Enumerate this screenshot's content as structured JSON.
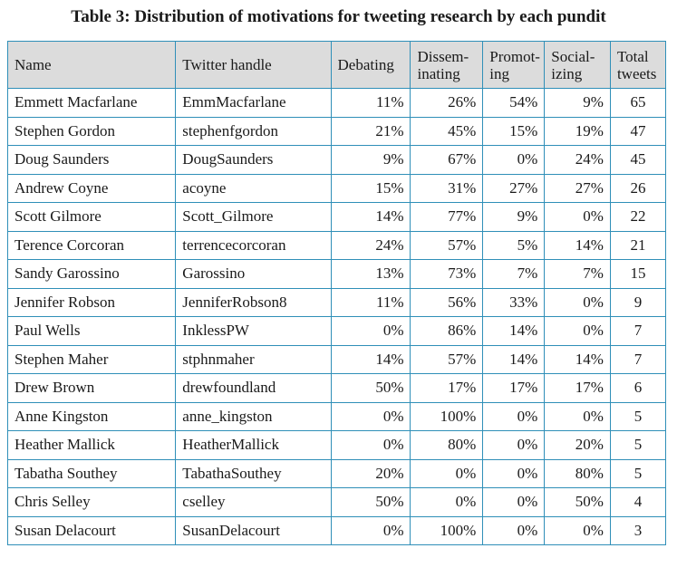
{
  "title": "Table 3: Distribution of motivations for tweeting research by each pundit",
  "headers": {
    "name": "Name",
    "handle": "Twitter handle",
    "debating": "Debating",
    "disseminating_1": "Dissem-",
    "disseminating_2": "inating",
    "promoting_1": "Promot-",
    "promoting_2": "ing",
    "socializing_1": "Social-",
    "socializing_2": "izing",
    "total_1": "Total",
    "total_2": "tweets"
  },
  "rows": [
    {
      "name": "Emmett Macfarlane",
      "handle": "EmmMacfarlane",
      "debating": "11%",
      "disseminating": "26%",
      "promoting": "54%",
      "socializing": "9%",
      "total": "65"
    },
    {
      "name": "Stephen Gordon",
      "handle": "stephenfgordon",
      "debating": "21%",
      "disseminating": "45%",
      "promoting": "15%",
      "socializing": "19%",
      "total": "47"
    },
    {
      "name": "Doug Saunders",
      "handle": "DougSaunders",
      "debating": "9%",
      "disseminating": "67%",
      "promoting": "0%",
      "socializing": "24%",
      "total": "45"
    },
    {
      "name": "Andrew Coyne",
      "handle": "acoyne",
      "debating": "15%",
      "disseminating": "31%",
      "promoting": "27%",
      "socializing": "27%",
      "total": "26"
    },
    {
      "name": "Scott Gilmore",
      "handle": "Scott_Gilmore",
      "debating": "14%",
      "disseminating": "77%",
      "promoting": "9%",
      "socializing": "0%",
      "total": "22"
    },
    {
      "name": "Terence Corcoran",
      "handle": "terrencecorcoran",
      "debating": "24%",
      "disseminating": "57%",
      "promoting": "5%",
      "socializing": "14%",
      "total": "21"
    },
    {
      "name": "Sandy Garossino",
      "handle": "Garossino",
      "debating": "13%",
      "disseminating": "73%",
      "promoting": "7%",
      "socializing": "7%",
      "total": "15"
    },
    {
      "name": "Jennifer Robson",
      "handle": "JenniferRobson8",
      "debating": "11%",
      "disseminating": "56%",
      "promoting": "33%",
      "socializing": "0%",
      "total": "9"
    },
    {
      "name": "Paul Wells",
      "handle": "InklessPW",
      "debating": "0%",
      "disseminating": "86%",
      "promoting": "14%",
      "socializing": "0%",
      "total": "7"
    },
    {
      "name": "Stephen Maher",
      "handle": "stphnmaher",
      "debating": "14%",
      "disseminating": "57%",
      "promoting": "14%",
      "socializing": "14%",
      "total": "7"
    },
    {
      "name": "Drew Brown",
      "handle": "drewfoundland",
      "debating": "50%",
      "disseminating": "17%",
      "promoting": "17%",
      "socializing": "17%",
      "total": "6"
    },
    {
      "name": "Anne Kingston",
      "handle": "anne_kingston",
      "debating": "0%",
      "disseminating": "100%",
      "promoting": "0%",
      "socializing": "0%",
      "total": "5"
    },
    {
      "name": "Heather Mallick",
      "handle": "HeatherMallick",
      "debating": "0%",
      "disseminating": "80%",
      "promoting": "0%",
      "socializing": "20%",
      "total": "5"
    },
    {
      "name": "Tabatha Southey",
      "handle": "TabathaSouthey",
      "debating": "20%",
      "disseminating": "0%",
      "promoting": "0%",
      "socializing": "80%",
      "total": "5"
    },
    {
      "name": "Chris Selley",
      "handle": "cselley",
      "debating": "50%",
      "disseminating": "0%",
      "promoting": "0%",
      "socializing": "50%",
      "total": "4"
    },
    {
      "name": "Susan Delacourt",
      "handle": "SusanDelacourt",
      "debating": "0%",
      "disseminating": "100%",
      "promoting": "0%",
      "socializing": "0%",
      "total": "3"
    }
  ],
  "colors": {
    "border": "#2f8fb8",
    "header_bg": "#dcdcdc"
  }
}
